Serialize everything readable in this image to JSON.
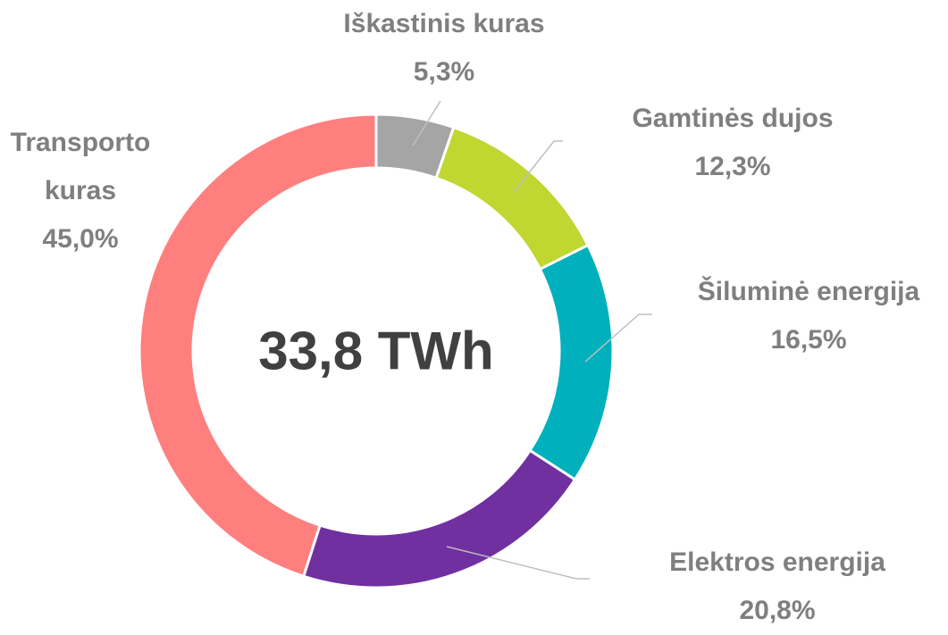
{
  "chart_data": {
    "type": "donut",
    "categories": [
      "Iškastinis kuras",
      "Gamtinės dujos",
      "Šiluminė energija",
      "Elektros energija",
      "Transporto kuras"
    ],
    "values": [
      5.3,
      12.3,
      16.5,
      20.8,
      45.0
    ],
    "value_labels": [
      "5,3%",
      "12,3%",
      "16,5%",
      "20,8%",
      "45,0%"
    ],
    "colors": [
      "#a5a5a5",
      "#c0d631",
      "#00b0bd",
      "#7030a0",
      "#ff7f7f"
    ],
    "center_label": "33,8 TWh"
  }
}
